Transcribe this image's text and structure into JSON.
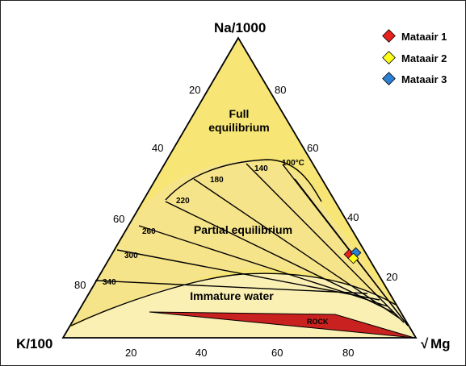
{
  "apexes": {
    "top": "Na/1000",
    "left": "K/100",
    "right_radical": "√",
    "right_text": "Mg"
  },
  "ticks": {
    "left_side": [
      "20",
      "40",
      "60",
      "80"
    ],
    "right_side": [
      "80",
      "60",
      "40",
      "20"
    ],
    "bottom": [
      "20",
      "40",
      "60",
      "80"
    ]
  },
  "regions": {
    "full_line1": "Full",
    "full_line2": "equilibrium",
    "partial": "Partial equilibrium",
    "immature": "Immature water",
    "rock": "ROCK"
  },
  "isotherms": [
    "100°C",
    "140",
    "180",
    "220",
    "260",
    "300",
    "340"
  ],
  "legend": [
    {
      "label": "Mataair 1",
      "color": "#e8201e"
    },
    {
      "label": "Mataair 2",
      "color": "#ffff1a"
    },
    {
      "label": "Mataair 3",
      "color": "#2c7fd1"
    }
  ],
  "colors": {
    "full_fill": "#f7e675",
    "partial_fill": "#f6e48a",
    "immature_fill": "#faf0b4",
    "rock_fill": "#c8211f"
  }
}
